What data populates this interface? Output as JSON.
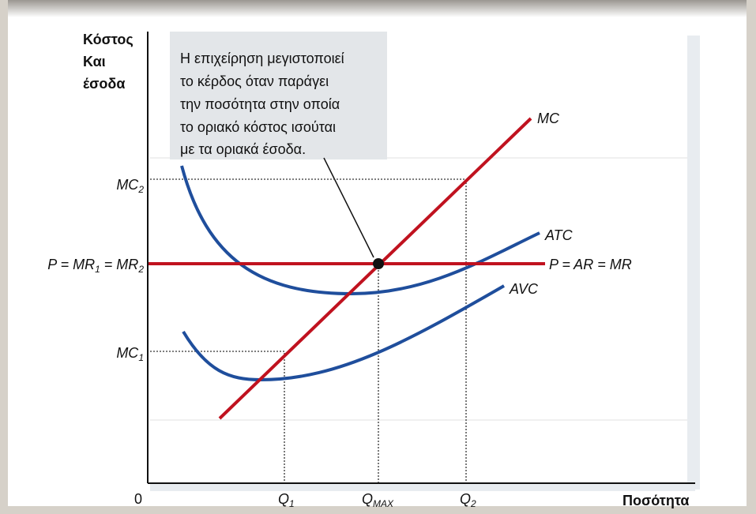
{
  "y_axis_label": [
    "Κόστος",
    "Και",
    "έσοδα"
  ],
  "x_axis_label": "Ποσότητα",
  "origin_label": "0",
  "annotation": [
    "Η επιχείρηση μεγιστοποιεί",
    " το κέρδος όταν παράγει",
    "την ποσότητα στην οποία",
    "το οριακό κόστος ισούται",
    "με τα οριακά έσοδα."
  ],
  "y_labels": {
    "mc2": {
      "main": "MC",
      "sub": "2"
    },
    "price": {
      "p": "P = MR",
      "sub1": "1",
      "mid": " = MR",
      "sub2": "2"
    },
    "mc1": {
      "main": "MC",
      "sub": "1"
    }
  },
  "x_labels": {
    "q1": {
      "main": "Q",
      "sub": "1"
    },
    "qmax": {
      "main": "Q",
      "sub": "MAX"
    },
    "q2": {
      "main": "Q",
      "sub": "2"
    }
  },
  "curves": {
    "mc": "MC",
    "atc": "ATC",
    "avc": "AVC",
    "demand": "P = AR = MR"
  }
}
